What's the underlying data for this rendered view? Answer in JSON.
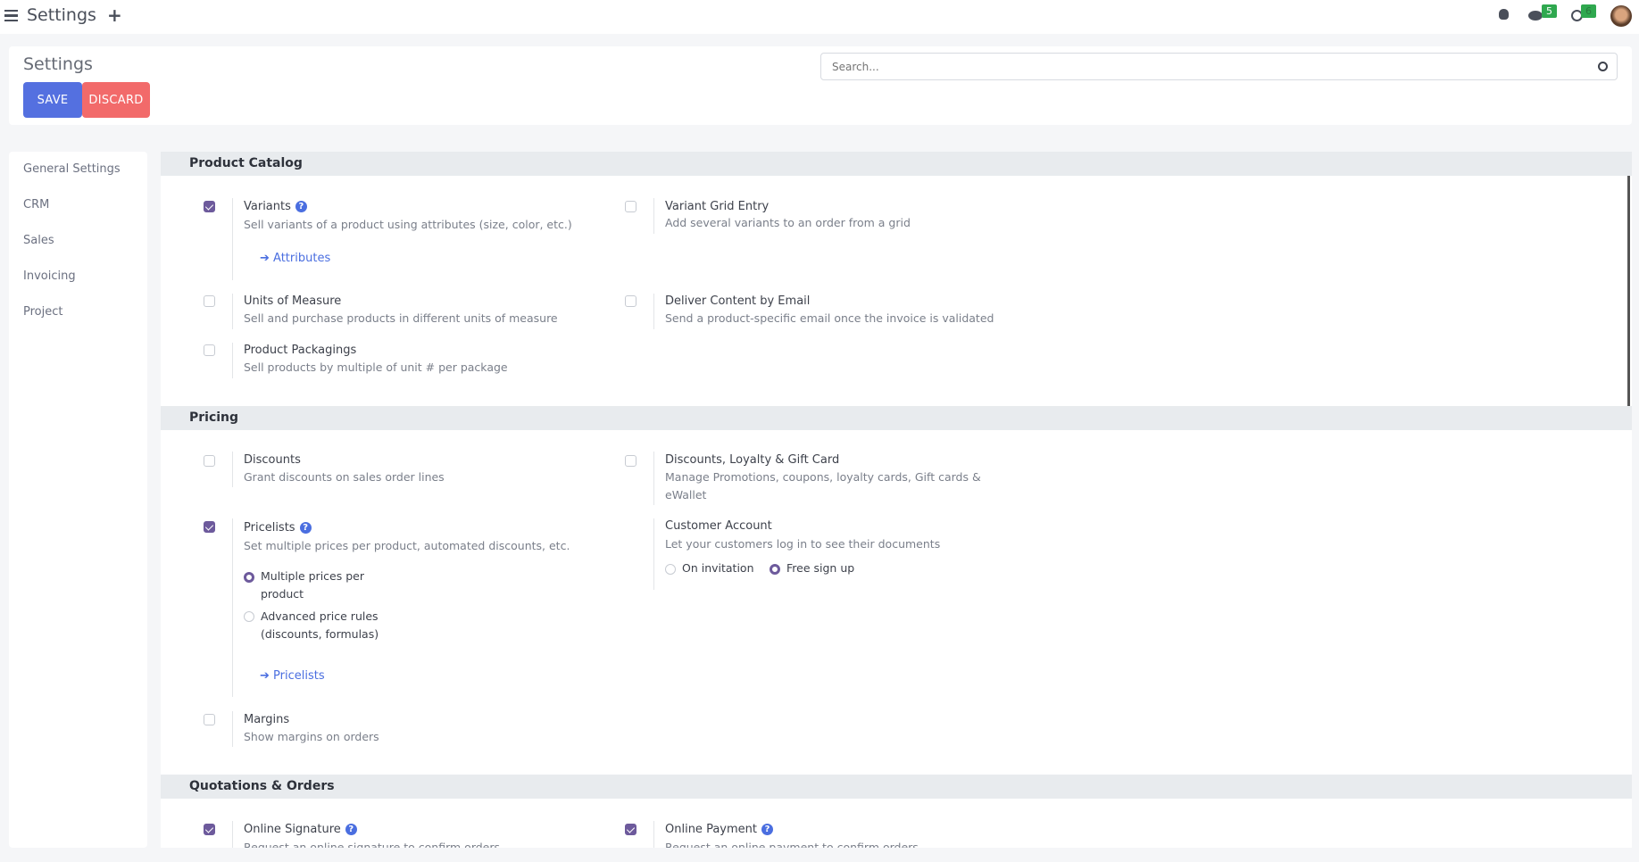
{
  "topbar": {
    "title": "Settings",
    "chat_count": "5",
    "activity_count": "6"
  },
  "header": {
    "title": "Settings",
    "save_label": "SAVE",
    "discard_label": "DISCARD",
    "search_placeholder": "Search..."
  },
  "sidebar": {
    "items": [
      {
        "label": "General Settings"
      },
      {
        "label": "CRM"
      },
      {
        "label": "Sales"
      },
      {
        "label": "Invoicing"
      },
      {
        "label": "Project"
      }
    ]
  },
  "colors": {
    "primary": "#5470e0",
    "danger": "#f26a6a",
    "checkbox": "#6d5a9c",
    "link": "#4a6ee0",
    "badge": "#2fa84f"
  },
  "sections": {
    "product_catalog": {
      "title": "Product Catalog",
      "variants": {
        "title": "Variants",
        "desc": "Sell variants of a product using attributes (size, color, etc.)",
        "link": "Attributes",
        "checked": true
      },
      "variant_grid": {
        "title": "Variant Grid Entry",
        "desc": "Add several variants to an order from a grid",
        "checked": false
      },
      "uom": {
        "title": "Units of Measure",
        "desc": "Sell and purchase products in different units of measure",
        "checked": false
      },
      "deliver": {
        "title": "Deliver Content by Email",
        "desc": "Send a product-specific email once the invoice is validated",
        "checked": false
      },
      "packagings": {
        "title": "Product Packagings",
        "desc": "Sell products by multiple of unit # per package",
        "checked": false
      }
    },
    "pricing": {
      "title": "Pricing",
      "discounts": {
        "title": "Discounts",
        "desc": "Grant discounts on sales order lines",
        "checked": false
      },
      "loyalty": {
        "title": "Discounts, Loyalty & Gift Card",
        "desc1": "Manage Promotions, coupons, loyalty cards, Gift cards &",
        "desc2": "eWallet",
        "checked": false
      },
      "pricelists": {
        "title": "Pricelists",
        "desc": "Set multiple prices per product, automated discounts, etc.",
        "opt1a": "Multiple prices per",
        "opt1b": "product",
        "opt2a": "Advanced price rules",
        "opt2b": "(discounts, formulas)",
        "selected": "Multiple prices per product",
        "link": "Pricelists",
        "checked": true
      },
      "customer_account": {
        "title": "Customer Account",
        "desc": "Let your customers log in to see their documents",
        "opt1": "On invitation",
        "opt2": "Free sign up",
        "selected": "Free sign up"
      },
      "margins": {
        "title": "Margins",
        "desc": "Show margins on orders",
        "checked": false
      }
    },
    "quotations": {
      "title": "Quotations & Orders",
      "signature": {
        "title": "Online Signature",
        "desc": "Request an online signature to confirm orders",
        "checked": true
      },
      "payment": {
        "title": "Online Payment",
        "desc": "Request an online payment to confirm orders",
        "checked": true
      }
    }
  }
}
